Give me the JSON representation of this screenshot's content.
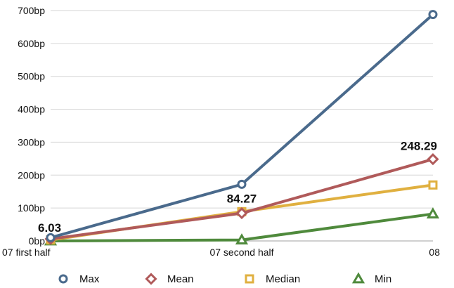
{
  "chart_data": {
    "type": "line",
    "title": "",
    "xlabel": "",
    "ylabel": "",
    "categories": [
      "07 first half",
      "07 second half",
      "08"
    ],
    "ylim": [
      0,
      700
    ],
    "yticks": [
      0,
      100,
      200,
      300,
      400,
      500,
      600,
      700
    ],
    "ytick_labels": [
      "0bp",
      "100bp",
      "200bp",
      "300bp",
      "400bp",
      "500bp",
      "600bp",
      "700bp"
    ],
    "grid": true,
    "legend_position": "bottom",
    "series": [
      {
        "name": "Max",
        "values": [
          10,
          172,
          688
        ],
        "color": "#4a6a8c",
        "marker": "circle"
      },
      {
        "name": "Mean",
        "values": [
          6.03,
          84.27,
          248.29
        ],
        "color": "#b05a5a",
        "marker": "diamond"
      },
      {
        "name": "Median",
        "values": [
          3,
          89,
          170
        ],
        "color": "#e0b040",
        "marker": "square"
      },
      {
        "name": "Min",
        "values": [
          0,
          3,
          82
        ],
        "color": "#4f8a3c",
        "marker": "triangle"
      }
    ],
    "annotations": [
      {
        "series": "Mean",
        "index": 0,
        "text": "6.03"
      },
      {
        "series": "Mean",
        "index": 1,
        "text": "84.27"
      },
      {
        "series": "Mean",
        "index": 2,
        "text": "248.29"
      }
    ]
  }
}
